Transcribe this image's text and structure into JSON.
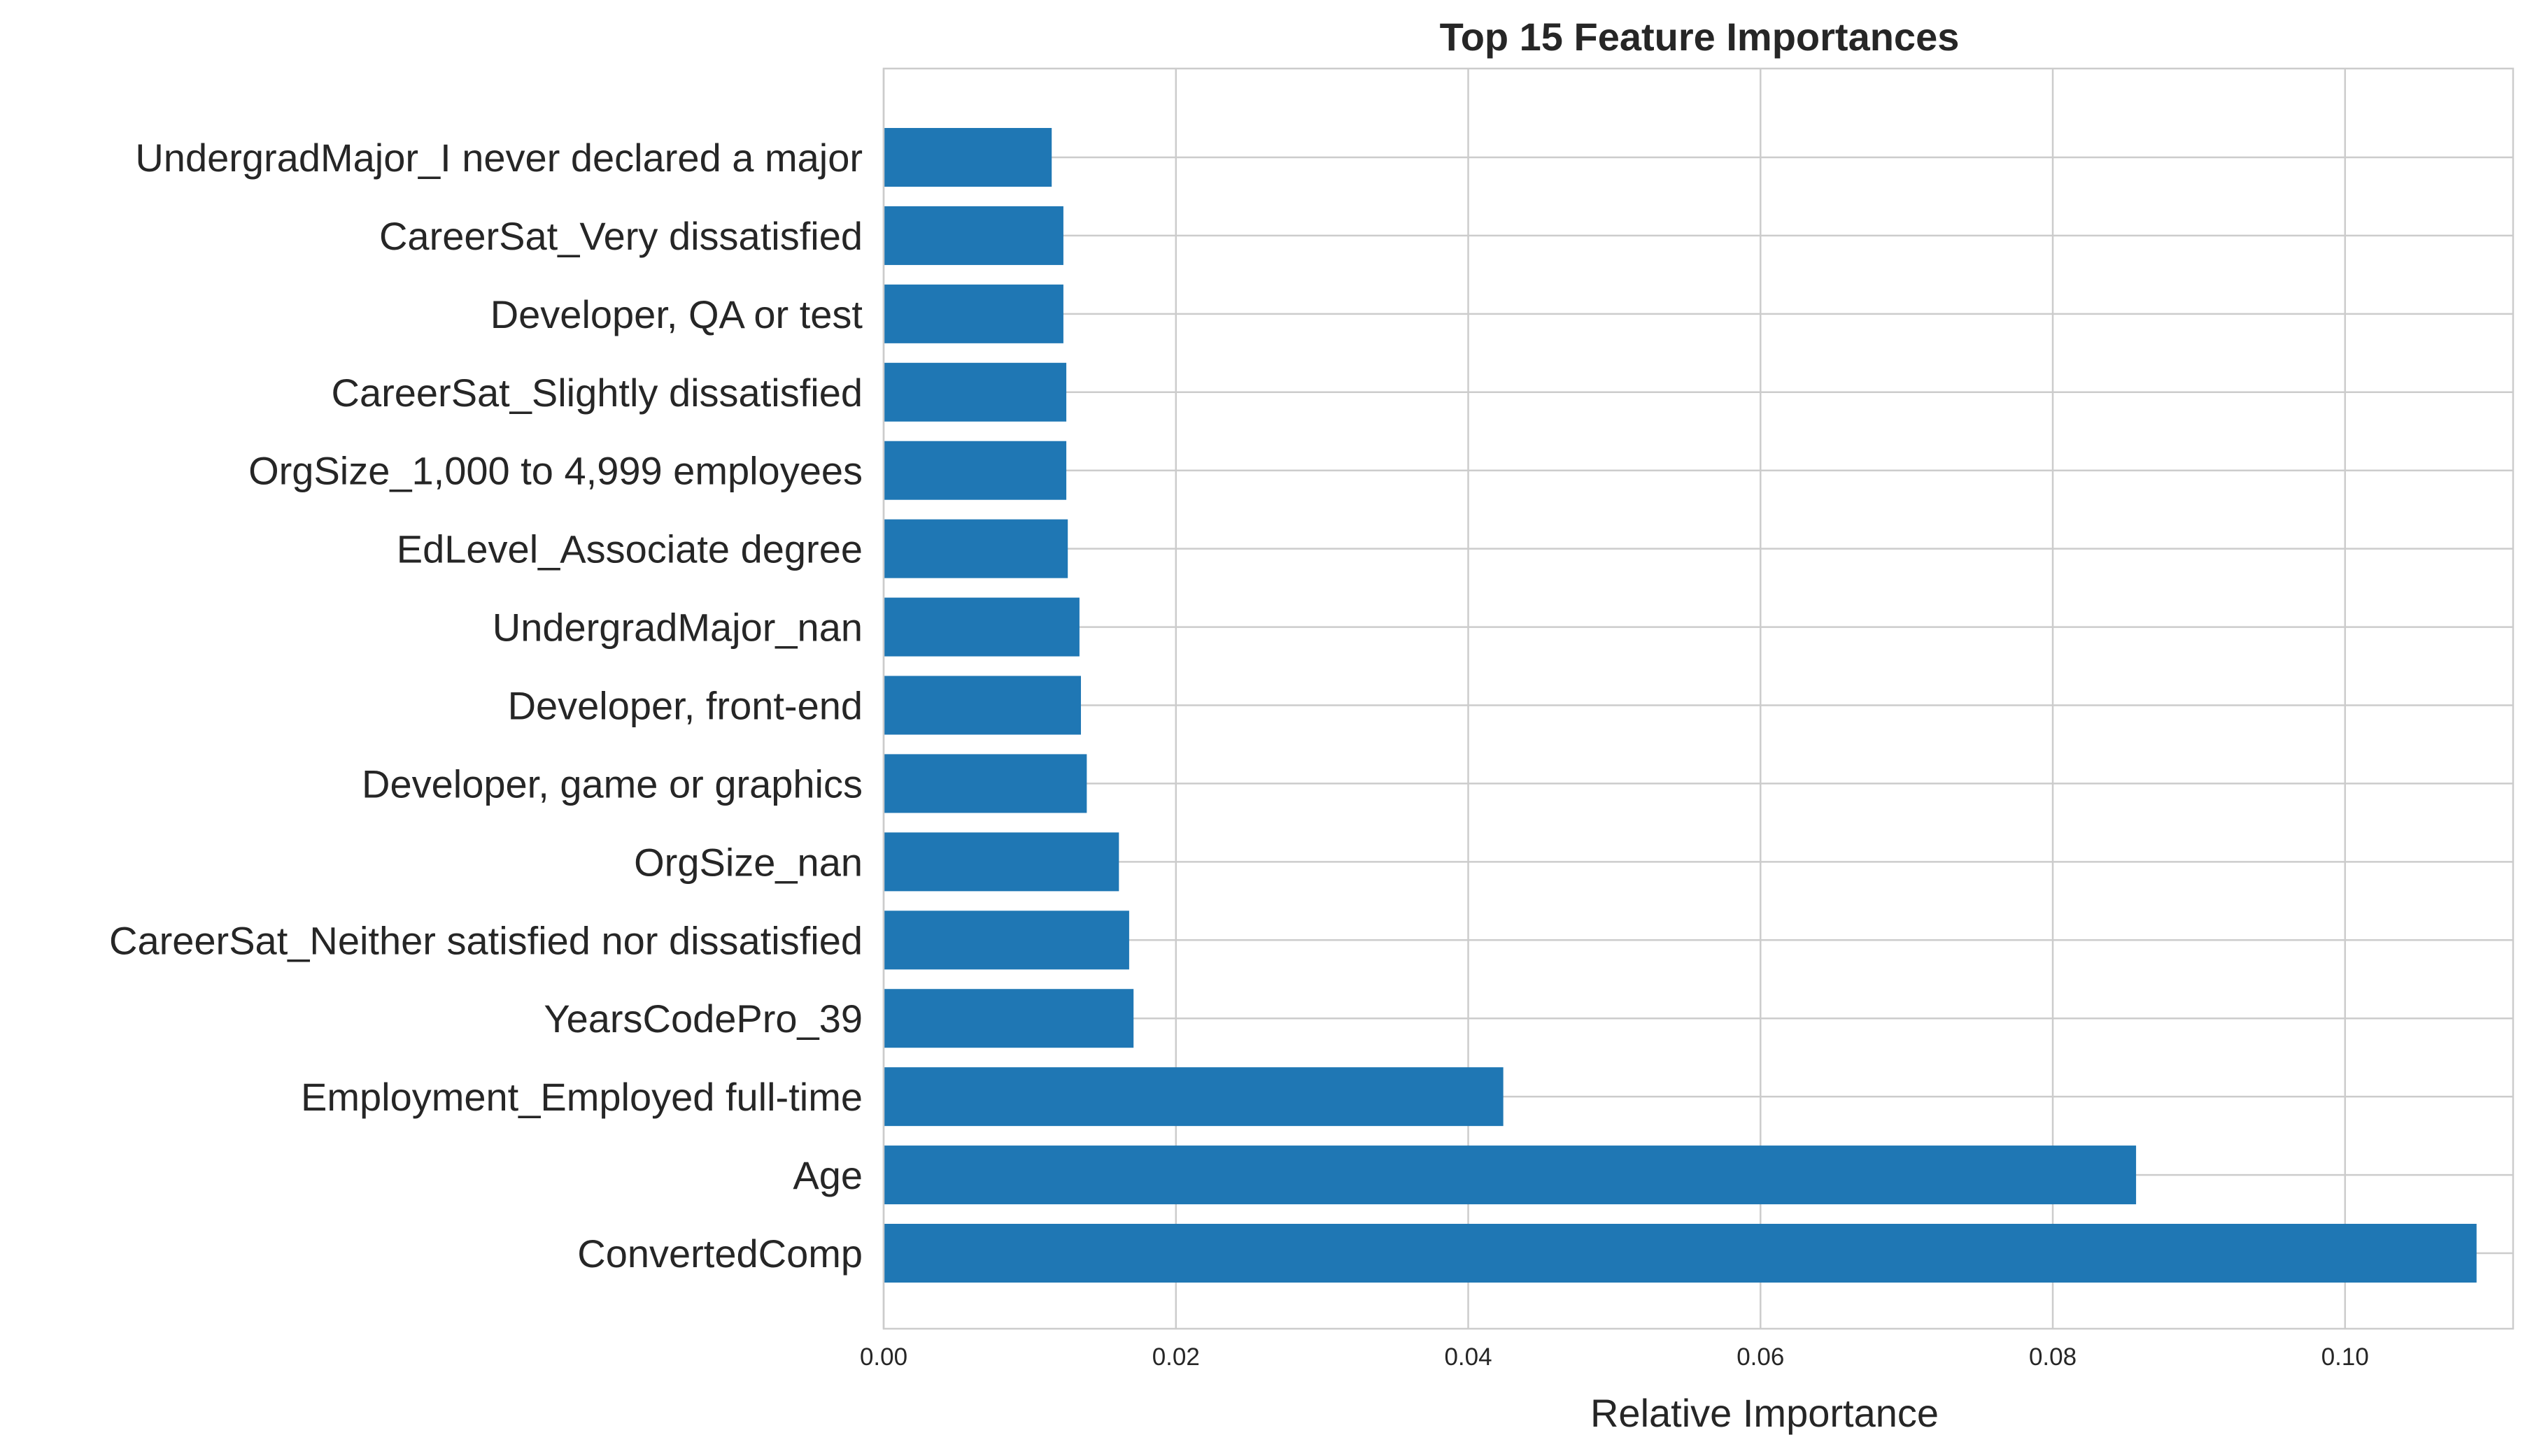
{
  "chart_data": {
    "type": "bar",
    "orientation": "horizontal",
    "title": "Top 15 Feature Importances",
    "xlabel": "Relative Importance",
    "ylabel": "",
    "xlim": [
      0.0,
      0.1115
    ],
    "xticks": [
      "0.00",
      "0.02",
      "0.04",
      "0.06",
      "0.08",
      "0.10"
    ],
    "xtick_values": [
      0.0,
      0.02,
      0.04,
      0.06,
      0.08,
      0.1
    ],
    "grid": true,
    "bar_color": "#1f77b4",
    "categories": [
      "ConvertedComp",
      "Age",
      "Employment_Employed full-time",
      "YearsCodePro_39",
      "CareerSat_Neither satisfied nor dissatisfied",
      "OrgSize_nan",
      "Developer, game or graphics",
      "Developer, front-end",
      "UndergradMajor_nan",
      "EdLevel_Associate degree",
      "OrgSize_1,000 to 4,999 employees",
      "CareerSat_Slightly dissatisfied",
      "Developer, QA or test",
      "CareerSat_Very dissatisfied",
      "UndergradMajor_I never declared a major"
    ],
    "values": [
      0.109,
      0.0857,
      0.0424,
      0.0171,
      0.0168,
      0.0161,
      0.0139,
      0.0135,
      0.0134,
      0.0126,
      0.0125,
      0.0125,
      0.0123,
      0.0123,
      0.0115
    ]
  }
}
